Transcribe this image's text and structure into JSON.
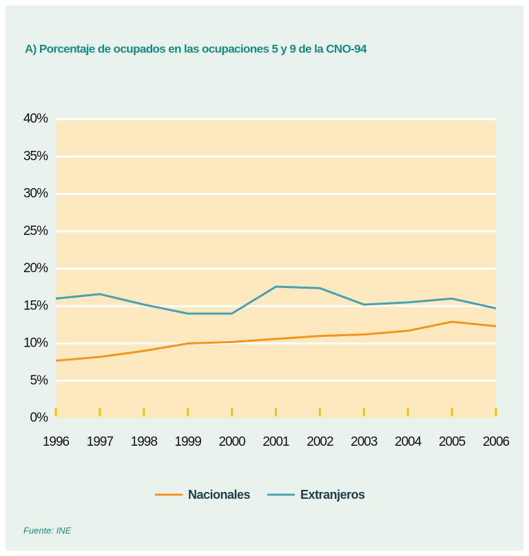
{
  "chart_data": {
    "type": "line",
    "title": "A) Porcentaje de ocupados en las ocupaciones 5 y 9 de la CNO-94",
    "source": "Fuente:  INE",
    "categories": [
      "1996",
      "1997",
      "1998",
      "1999",
      "2000",
      "2001",
      "2002",
      "2003",
      "2004",
      "2005",
      "2006"
    ],
    "series": [
      {
        "name": "Nacionales",
        "color": "#f7941d",
        "values": [
          7.7,
          8.2,
          9.0,
          10.0,
          10.2,
          10.6,
          11.0,
          11.2,
          11.7,
          12.9,
          12.3
        ]
      },
      {
        "name": "Extranjeros",
        "color": "#4a9fb0",
        "values": [
          16.0,
          16.6,
          15.2,
          14.0,
          14.0,
          17.6,
          17.4,
          15.2,
          15.5,
          16.0,
          14.7
        ]
      }
    ],
    "ylim": [
      0,
      40
    ],
    "yticks": [
      {
        "value": 0,
        "label": "0%"
      },
      {
        "value": 5,
        "label": "5%"
      },
      {
        "value": 10,
        "label": "10%"
      },
      {
        "value": 15,
        "label": "15%"
      },
      {
        "value": 20,
        "label": "20%"
      },
      {
        "value": 25,
        "label": "25%"
      },
      {
        "value": 30,
        "label": "30%"
      },
      {
        "value": 35,
        "label": "35%"
      },
      {
        "value": 40,
        "label": "40%"
      }
    ],
    "grid": true,
    "legend": "bottom"
  }
}
